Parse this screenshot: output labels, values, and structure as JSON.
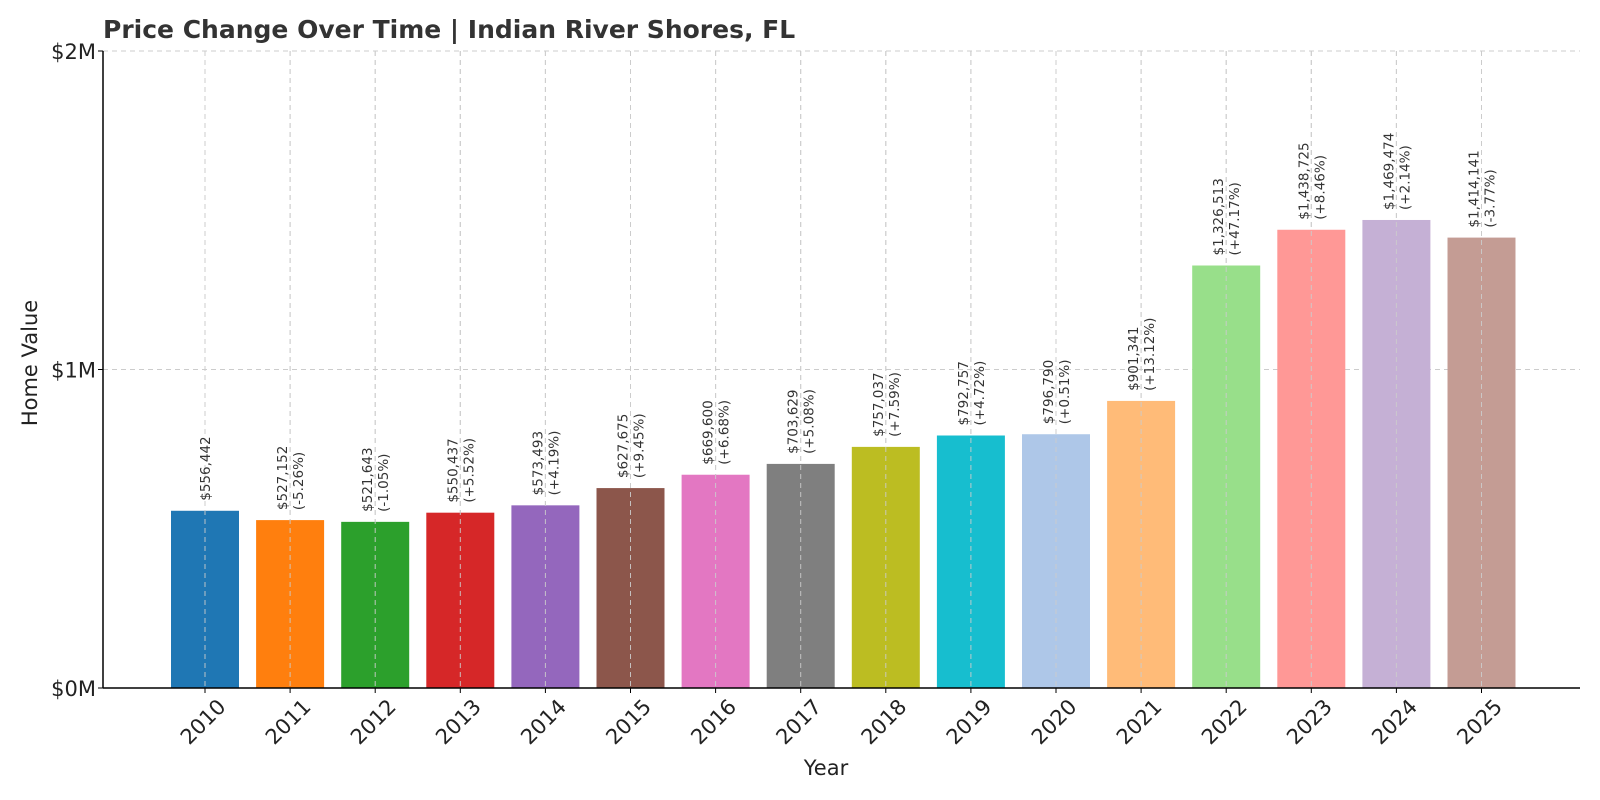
{
  "chart_data": {
    "type": "bar",
    "title": "Price Change Over Time | Indian River Shores, FL",
    "xlabel": "Year",
    "ylabel": "Home Value",
    "ylim": [
      0,
      2000000
    ],
    "yticks": [
      {
        "value": 0,
        "label": "$0M"
      },
      {
        "value": 1000000,
        "label": "$1M"
      },
      {
        "value": 2000000,
        "label": "$2M"
      }
    ],
    "grid": true,
    "categories": [
      "2010",
      "2011",
      "2012",
      "2013",
      "2014",
      "2015",
      "2016",
      "2017",
      "2018",
      "2019",
      "2020",
      "2021",
      "2022",
      "2023",
      "2024",
      "2025"
    ],
    "values": [
      556442,
      527152,
      521643,
      550437,
      573493,
      627675,
      669600,
      703629,
      757037,
      792757,
      796790,
      901341,
      1326513,
      1438725,
      1469474,
      1414141
    ],
    "value_labels": [
      "$556,442",
      "$527,152",
      "$521,643",
      "$550,437",
      "$573,493",
      "$627,675",
      "$669,600",
      "$703,629",
      "$757,037",
      "$792,757",
      "$796,790",
      "$901,341",
      "$1,326,513",
      "$1,438,725",
      "$1,469,474",
      "$1,414,141"
    ],
    "change_labels": [
      "",
      "(-5.26%)",
      "(-1.05%)",
      "(+5.52%)",
      "(+4.19%)",
      "(+9.45%)",
      "(+6.68%)",
      "(+5.08%)",
      "(+7.59%)",
      "(+4.72%)",
      "(+0.51%)",
      "(+13.12%)",
      "(+47.17%)",
      "(+8.46%)",
      "(+2.14%)",
      "(-3.77%)"
    ],
    "colors": [
      "#1f77b4",
      "#ff7f0e",
      "#2ca02c",
      "#d62728",
      "#9467bd",
      "#8c564b",
      "#e377c2",
      "#7f7f7f",
      "#bcbd22",
      "#17becf",
      "#aec7e8",
      "#ffbb78",
      "#98df8a",
      "#ff9896",
      "#c5b0d5",
      "#c49c94"
    ]
  }
}
